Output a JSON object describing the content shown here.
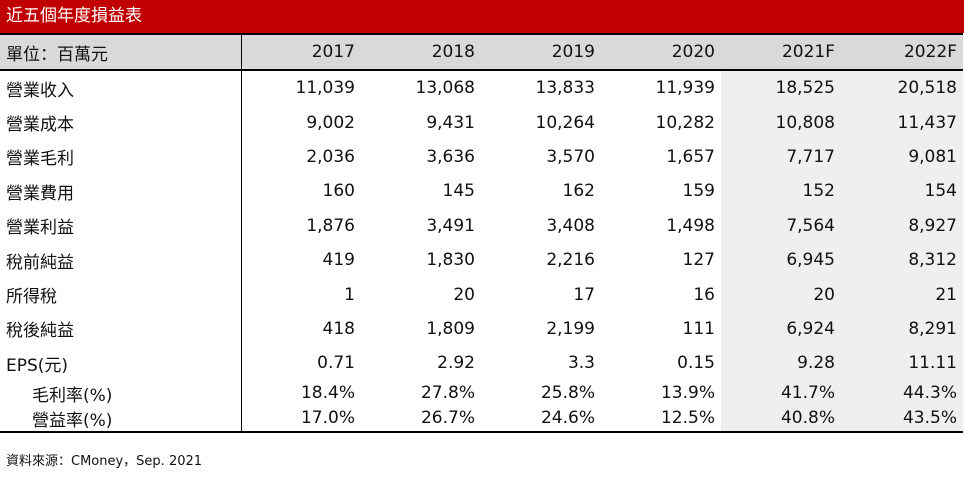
{
  "title": "近五個年度損益表",
  "table": {
    "unit_label": "單位：百萬元",
    "years": [
      "2017",
      "2018",
      "2019",
      "2020",
      "2021F",
      "2022F"
    ],
    "rows": [
      {
        "label": "營業收入",
        "values": [
          "11,039",
          "13,068",
          "13,833",
          "11,939",
          "18,525",
          "20,518"
        ]
      },
      {
        "label": "營業成本",
        "values": [
          "9,002",
          "9,431",
          "10,264",
          "10,282",
          "10,808",
          "11,437"
        ]
      },
      {
        "label": "營業毛利",
        "values": [
          "2,036",
          "3,636",
          "3,570",
          "1,657",
          "7,717",
          "9,081"
        ]
      },
      {
        "label": "營業費用",
        "values": [
          "160",
          "145",
          "162",
          "159",
          "152",
          "154"
        ]
      },
      {
        "label": "營業利益",
        "values": [
          "1,876",
          "3,491",
          "3,408",
          "1,498",
          "7,564",
          "8,927"
        ]
      },
      {
        "label": "稅前純益",
        "values": [
          "419",
          "1,830",
          "2,216",
          "127",
          "6,945",
          "8,312"
        ]
      },
      {
        "label": "所得稅",
        "values": [
          "1",
          "20",
          "17",
          "16",
          "20",
          "21"
        ]
      },
      {
        "label": "稅後純益",
        "values": [
          "418",
          "1,809",
          "2,199",
          "111",
          "6,924",
          "8,291"
        ]
      },
      {
        "label": "EPS(元)",
        "values": [
          "0.71",
          "2.92",
          "3.3",
          "0.15",
          "9.28",
          "11.11"
        ]
      },
      {
        "label": "毛利率(%)",
        "values": [
          "18.4%",
          "27.8%",
          "25.8%",
          "13.9%",
          "41.7%",
          "44.3%"
        ]
      },
      {
        "label": "營益率(%)",
        "values": [
          "17.0%",
          "26.7%",
          "24.6%",
          "12.5%",
          "40.8%",
          "43.5%"
        ]
      }
    ]
  },
  "source": "資料來源：CMoney，Sep. 2021",
  "colors": {
    "title_bg": "#c00000",
    "header_bg": "#d9d9d9",
    "forecast_bg": "#efefef"
  }
}
